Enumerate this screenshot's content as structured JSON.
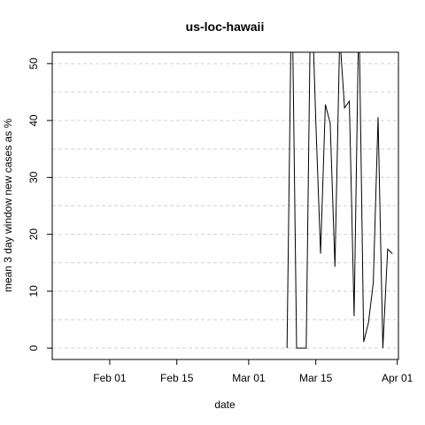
{
  "chart_data": {
    "type": "line",
    "title": "us-loc-hawaii",
    "xlabel": "date",
    "ylabel": "mean  3  day window new cases as %",
    "x_start": "2020-01-22",
    "x": [
      "2020-03-09",
      "2020-03-10",
      "2020-03-11",
      "2020-03-12",
      "2020-03-13",
      "2020-03-14",
      "2020-03-15",
      "2020-03-16",
      "2020-03-17",
      "2020-03-18",
      "2020-03-19",
      "2020-03-20",
      "2020-03-21",
      "2020-03-22",
      "2020-03-23",
      "2020-03-24",
      "2020-03-25",
      "2020-03-26",
      "2020-03-27",
      "2020-03-28",
      "2020-03-29",
      "2020-03-30",
      "2020-03-31"
    ],
    "values": [
      0,
      66.7,
      0,
      0,
      0,
      66.7,
      40,
      16.6,
      42.8,
      39.6,
      14.3,
      55,
      42.2,
      43.4,
      5.6,
      60,
      1.1,
      4.5,
      11.5,
      40.6,
      0,
      17.4,
      16.6
    ],
    "xlim": [
      "2020-01-20",
      "2020-04-01"
    ],
    "ylim": [
      -2,
      52
    ],
    "yticks": [
      0,
      10,
      20,
      30,
      40,
      50
    ],
    "xticks": [
      {
        "label": "Feb 01",
        "date": "2020-02-01"
      },
      {
        "label": "Feb 15",
        "date": "2020-02-15"
      },
      {
        "label": "Mar 01",
        "date": "2020-03-01"
      },
      {
        "label": "Mar 15",
        "date": "2020-03-15"
      },
      {
        "label": "Apr 01",
        "date": "2020-04-01"
      }
    ],
    "grid": true,
    "line_color": "#000000",
    "grid_color": "#d3d3d3"
  }
}
